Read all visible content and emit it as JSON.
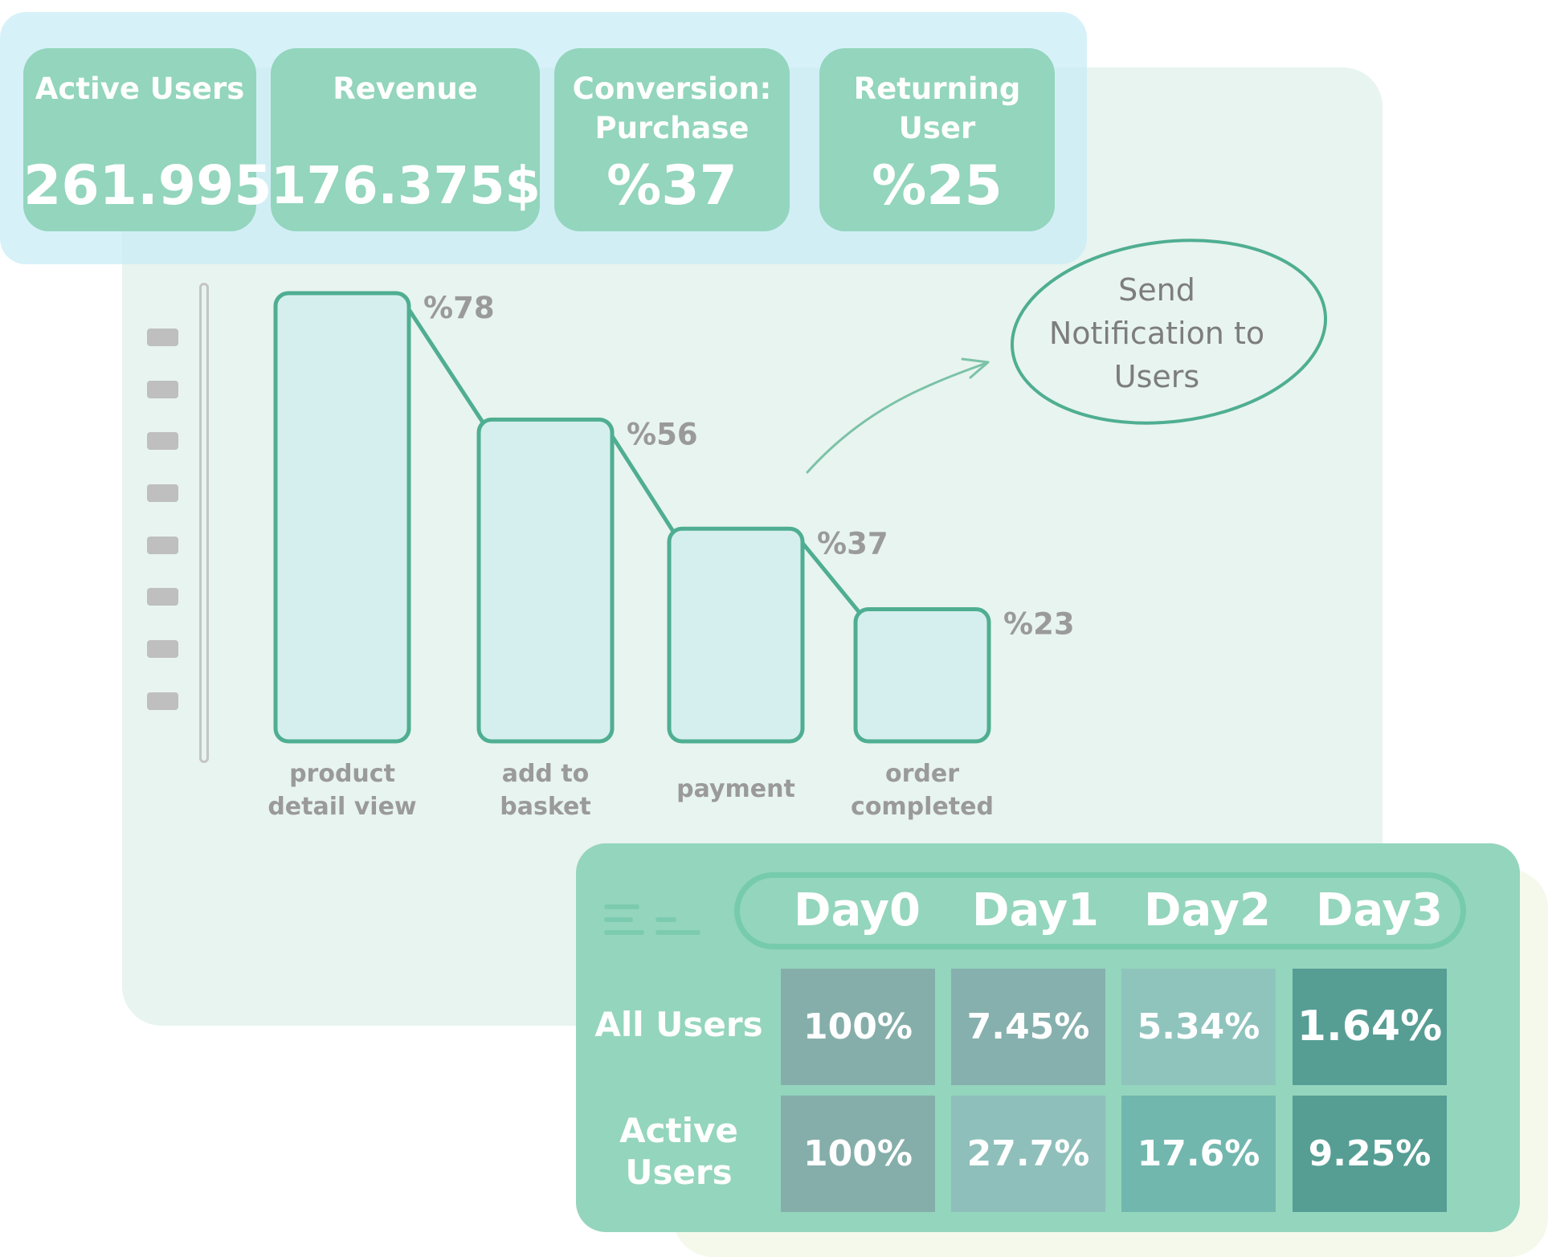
{
  "kpis": [
    {
      "label": "Active Users",
      "value": "261.995"
    },
    {
      "label": "Revenue",
      "value": "176.375$"
    },
    {
      "label": "Conversion:\nPurchase",
      "value": "%37"
    },
    {
      "label": "Returning\nUser",
      "value": "%25"
    }
  ],
  "chart_data": {
    "type": "bar",
    "categories": [
      "product\ndetail view",
      "add to\nbasket",
      "payment",
      "order\ncompleted"
    ],
    "values": [
      78,
      56,
      37,
      23
    ],
    "value_labels": [
      "%78",
      "%56",
      "%37",
      "%23"
    ],
    "ylim": [
      0,
      100
    ],
    "grid": false
  },
  "annotation": {
    "text": "Send\nNotification to\nUsers"
  },
  "cohort": {
    "headers": [
      "Day0",
      "Day1",
      "Day2",
      "Day3"
    ],
    "rows": [
      {
        "label": "All Users",
        "cells": [
          "100%",
          "7.45%",
          "5.34%",
          "1.64%"
        ],
        "colors": [
          "#85aeaa",
          "#86b0ad",
          "#8fc4bd",
          "#569e94"
        ]
      },
      {
        "label": "Active\nUsers",
        "cells": [
          "100%",
          "27.7%",
          "17.6%",
          "9.25%"
        ],
        "colors": [
          "#85aeaa",
          "#8fbfba",
          "#72b7ae",
          "#569e94"
        ]
      }
    ]
  },
  "colors": {
    "accent": "#4fae91",
    "bar_fill": "#d5efee",
    "label_gray": "#9a9a9a",
    "kpi_card": "#93d5bd",
    "cohort_panel": "#94d5bd"
  }
}
